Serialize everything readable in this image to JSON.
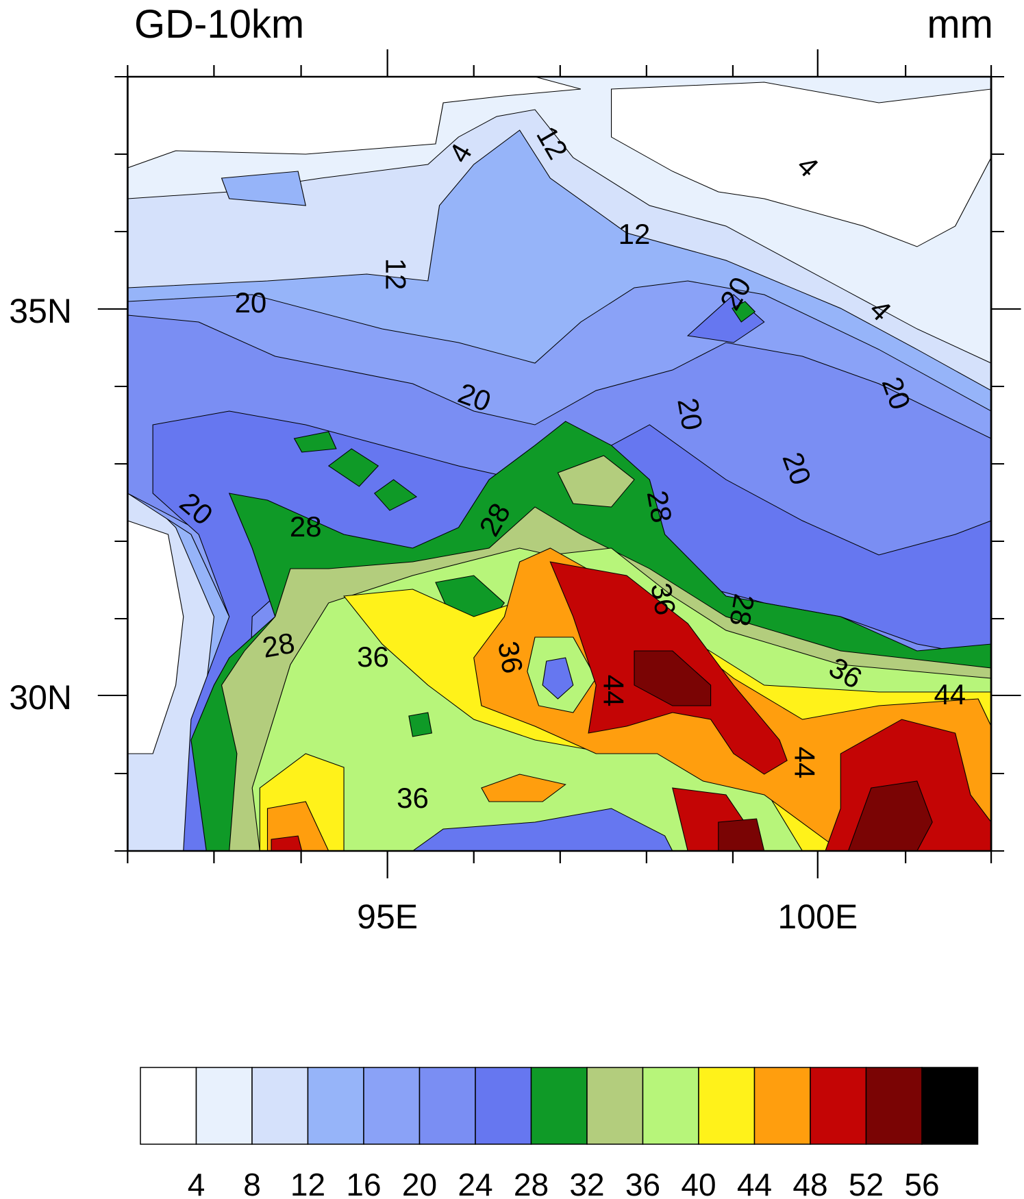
{
  "title": "GD-10km",
  "units": "mm",
  "map": {
    "lat_labels": [
      "35N",
      "30N"
    ],
    "lon_labels": [
      "95E",
      "100E"
    ],
    "contour_labels": [
      "4",
      "12",
      "4",
      "12",
      "12",
      "20",
      "20",
      "4",
      "20",
      "20",
      "20",
      "20",
      "20",
      "28",
      "28",
      "28",
      "36",
      "28",
      "28",
      "36",
      "36",
      "36",
      "44",
      "44",
      "44",
      "36"
    ]
  },
  "colorbar": {
    "levels": [
      "4",
      "8",
      "12",
      "16",
      "20",
      "24",
      "28",
      "32",
      "36",
      "40",
      "44",
      "48",
      "52",
      "56"
    ],
    "colors": [
      "#ffffff",
      "#e8f1fd",
      "#d5e1fb",
      "#96b4f9",
      "#8aa2f7",
      "#7a8ef3",
      "#6677f0",
      "#0f9a27",
      "#b3cd7d",
      "#b7f57a",
      "#fff21a",
      "#ff9e0e",
      "#c40505",
      "#7a0404",
      "#000000"
    ]
  }
}
